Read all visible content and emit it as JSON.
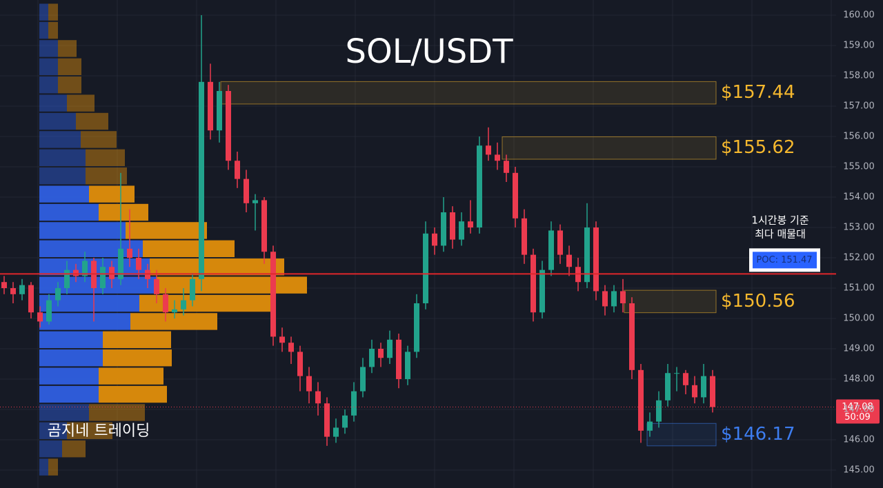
{
  "chart_data": {
    "type": "candlestick",
    "title": "SOL/USDT",
    "watermark": "곰지네 트레이딩",
    "annotation": [
      "1시간봉 기준",
      "최다 매물대"
    ],
    "up_color": "#22a38c",
    "down_color": "#ec3b4f",
    "open": [
      151.2,
      151.0,
      150.8,
      151.1,
      150.2,
      149.9,
      150.6,
      151.0,
      151.6,
      151.4,
      151.9,
      151.0,
      151.7,
      151.3,
      152.3,
      152.0,
      151.6,
      151.3,
      150.8,
      150.2,
      150.3,
      150.6,
      151.3,
      157.8,
      156.2,
      157.5,
      155.2,
      154.6,
      153.8,
      153.9,
      152.2,
      149.4,
      149.2,
      148.9,
      148.1,
      147.6,
      147.2,
      146.1,
      146.4,
      146.8,
      147.6,
      148.4,
      149.0,
      148.7,
      149.3,
      148.0,
      148.9,
      150.5,
      152.8,
      152.4,
      153.5,
      152.6,
      153.2,
      153.0,
      155.7,
      155.4,
      155.2,
      154.8,
      153.3,
      152.1,
      150.2,
      151.6,
      152.9,
      152.1,
      151.7,
      151.2,
      153.0,
      150.9,
      150.4,
      150.9,
      150.5,
      148.3,
      146.3,
      146.6,
      147.3,
      148.2,
      148.2,
      147.8,
      147.4,
      148.1
    ],
    "high": [
      151.4,
      151.2,
      151.3,
      151.2,
      150.4,
      150.8,
      151.2,
      151.9,
      151.8,
      152.2,
      152.0,
      152.0,
      151.9,
      154.8,
      153.6,
      152.3,
      151.8,
      151.6,
      151.0,
      150.6,
      151.0,
      151.5,
      160.0,
      158.4,
      157.8,
      157.7,
      155.5,
      154.9,
      154.1,
      154.0,
      152.4,
      149.7,
      149.4,
      149.1,
      148.4,
      147.9,
      147.4,
      146.7,
      147.0,
      147.9,
      148.7,
      149.3,
      149.2,
      149.6,
      149.5,
      149.1,
      150.8,
      153.2,
      153.0,
      154.0,
      153.7,
      153.5,
      153.9,
      156.0,
      156.3,
      155.8,
      155.4,
      155.0,
      153.6,
      152.3,
      151.9,
      153.2,
      153.1,
      152.4,
      152.0,
      153.8,
      153.2,
      151.1,
      151.1,
      151.3,
      150.7,
      148.5,
      146.9,
      147.6,
      148.5,
      148.4,
      148.3,
      148.1,
      148.5,
      148.3
    ],
    "low": [
      150.8,
      150.5,
      150.6,
      150.0,
      149.7,
      149.8,
      150.4,
      150.8,
      151.2,
      151.2,
      149.9,
      150.8,
      151.0,
      151.1,
      151.7,
      151.3,
      151.0,
      150.5,
      149.9,
      150.0,
      150.1,
      150.4,
      150.9,
      155.9,
      155.8,
      154.9,
      154.3,
      153.5,
      152.9,
      151.8,
      149.1,
      148.9,
      148.5,
      147.6,
      147.2,
      146.8,
      145.8,
      145.9,
      146.2,
      146.6,
      147.4,
      148.2,
      148.4,
      148.5,
      147.7,
      147.8,
      148.7,
      150.3,
      152.1,
      152.2,
      152.3,
      152.4,
      152.8,
      152.8,
      155.2,
      154.9,
      154.5,
      153.0,
      151.8,
      149.9,
      150.0,
      151.4,
      151.8,
      151.4,
      150.9,
      151.0,
      150.6,
      150.1,
      150.2,
      150.2,
      148.0,
      145.9,
      146.1,
      146.4,
      147.1,
      147.6,
      147.5,
      147.2,
      147.2,
      146.9
    ],
    "close": [
      151.0,
      150.8,
      151.1,
      150.2,
      149.9,
      150.6,
      151.0,
      151.6,
      151.4,
      151.9,
      151.0,
      151.7,
      151.3,
      152.3,
      152.0,
      151.6,
      151.3,
      150.8,
      150.2,
      150.3,
      150.6,
      151.3,
      157.8,
      156.2,
      157.5,
      155.2,
      154.6,
      153.8,
      153.9,
      152.2,
      149.4,
      149.2,
      148.9,
      148.1,
      147.6,
      147.2,
      146.1,
      146.4,
      146.8,
      147.6,
      148.4,
      149.0,
      148.7,
      149.3,
      148.0,
      148.9,
      150.5,
      152.8,
      152.4,
      153.5,
      152.6,
      153.2,
      153.0,
      155.7,
      155.4,
      155.2,
      154.8,
      153.3,
      152.1,
      150.2,
      151.6,
      152.9,
      152.1,
      151.7,
      151.2,
      153.0,
      150.9,
      150.4,
      150.9,
      150.5,
      148.3,
      146.3,
      146.6,
      147.3,
      148.2,
      148.2,
      147.8,
      147.4,
      148.1,
      147.08
    ],
    "ylim": [
      144.41,
      160.5
    ],
    "yticks": [
      {
        "value": 145,
        "label": "145.00"
      },
      {
        "value": 146,
        "label": "146.00"
      },
      {
        "value": 147,
        "label": "147.00"
      },
      {
        "value": 148,
        "label": "148.00"
      },
      {
        "value": 149,
        "label": "149.00"
      },
      {
        "value": 150,
        "label": "150.00"
      },
      {
        "value": 151,
        "label": "151.00"
      },
      {
        "value": 152,
        "label": "152.00"
      },
      {
        "value": 153,
        "label": "153.00"
      },
      {
        "value": 154,
        "label": "154.00"
      },
      {
        "value": 155,
        "label": "155.00"
      },
      {
        "value": 156,
        "label": "156.00"
      },
      {
        "value": 157,
        "label": "157.00"
      },
      {
        "value": 158,
        "label": "158.00"
      },
      {
        "value": 159,
        "label": "159.00"
      },
      {
        "value": 160,
        "label": "160.00"
      }
    ],
    "grid": true,
    "levels": [
      {
        "value": 157.44,
        "label": "$157.44",
        "color": "#f5b82e"
      },
      {
        "value": 155.62,
        "label": "$155.62",
        "color": "#f5b82e"
      },
      {
        "value": 150.56,
        "label": "$150.56",
        "color": "#f5b82e"
      },
      {
        "value": 146.17,
        "label": "$146.17",
        "color": "#3d7df0"
      }
    ],
    "poc": {
      "value": 151.47,
      "label": "POC: 151.47",
      "color": "#e0262b"
    },
    "last": {
      "value": 147.08,
      "countdown": "50:09",
      "color": "#ec3b4f"
    },
    "profile": {
      "bins": [
        160.4,
        159.8,
        159.2,
        158.6,
        158.0,
        157.4,
        156.8,
        156.2,
        155.6,
        155.0,
        154.4,
        153.8,
        153.2,
        152.6,
        152.0,
        151.4,
        150.8,
        150.2,
        149.6,
        149.0,
        148.4,
        147.8,
        147.2,
        146.6,
        146.0,
        145.4,
        144.8
      ],
      "buy": [
        13,
        13,
        27,
        27,
        27,
        40,
        53,
        60,
        67,
        67,
        72,
        86,
        125,
        150,
        160,
        170,
        145,
        132,
        92,
        92,
        86,
        86,
        72,
        40,
        33,
        13
      ],
      "sell": [
        14,
        14,
        27,
        34,
        34,
        40,
        47,
        52,
        57,
        60,
        66,
        72,
        118,
        133,
        195,
        218,
        195,
        126,
        99,
        100,
        94,
        99,
        81,
        66,
        34,
        14
      ],
      "buy_color": "#2f5fe0",
      "sell_color": "#e08e0b",
      "value_area": [
        147.4,
        154.3
      ]
    }
  }
}
